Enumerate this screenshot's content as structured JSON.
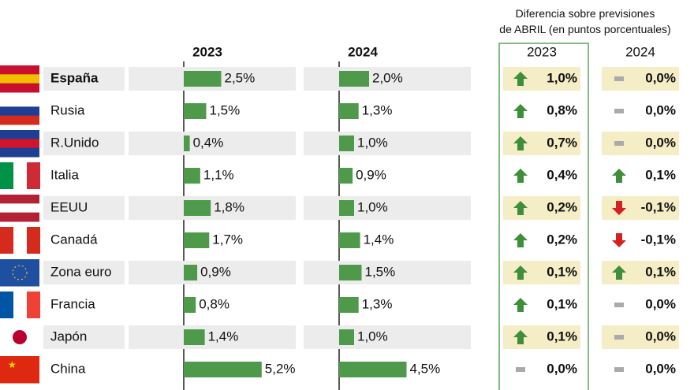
{
  "chart_data": {
    "type": "bar-table",
    "header": "Diferencia sobre previsiones de ABRIL (en puntos porcentuales)",
    "categories": [
      "España",
      "Rusia",
      "R.Unido",
      "Italia",
      "EEUU",
      "Canadá",
      "Zona euro",
      "Francia",
      "Japón",
      "China"
    ],
    "series": [
      {
        "name": "2023",
        "color": "#4e9a4a",
        "values": [
          2.5,
          1.5,
          0.4,
          1.1,
          1.8,
          1.7,
          0.9,
          0.8,
          1.4,
          5.2
        ],
        "value_labels": [
          "2,5%",
          "1,5%",
          "0,4%",
          "1,1%",
          "1,8%",
          "1,7%",
          "0,9%",
          "0,8%",
          "1,4%",
          "5,2%"
        ]
      },
      {
        "name": "2024",
        "color": "#4e9a4a",
        "values": [
          2.0,
          1.3,
          1.0,
          0.9,
          1.0,
          1.4,
          1.5,
          1.3,
          1.0,
          4.5
        ],
        "value_labels": [
          "2,0%",
          "1,3%",
          "1,0%",
          "0,9%",
          "1,0%",
          "1,4%",
          "1,5%",
          "1,3%",
          "1,0%",
          "4,5%"
        ]
      }
    ],
    "diff_series": [
      {
        "name": "2023",
        "values": [
          1.0,
          0.8,
          0.7,
          0.4,
          0.2,
          0.2,
          0.1,
          0.1,
          0.1,
          0.0
        ],
        "value_labels": [
          "1,0%",
          "0,8%",
          "0,7%",
          "0,4%",
          "0,2%",
          "0,2%",
          "0,1%",
          "0,1%",
          "0,1%",
          "0,0%"
        ]
      },
      {
        "name": "2024",
        "values": [
          0.0,
          0.0,
          0.0,
          0.1,
          -0.1,
          -0.1,
          0.1,
          0.0,
          0.0,
          0.0
        ],
        "value_labels": [
          "0,0%",
          "0,0%",
          "0,0%",
          "0,1%",
          "-0,1%",
          "-0,1%",
          "0,1%",
          "0,0%",
          "0,0%",
          "0,0%"
        ]
      }
    ]
  }
}
